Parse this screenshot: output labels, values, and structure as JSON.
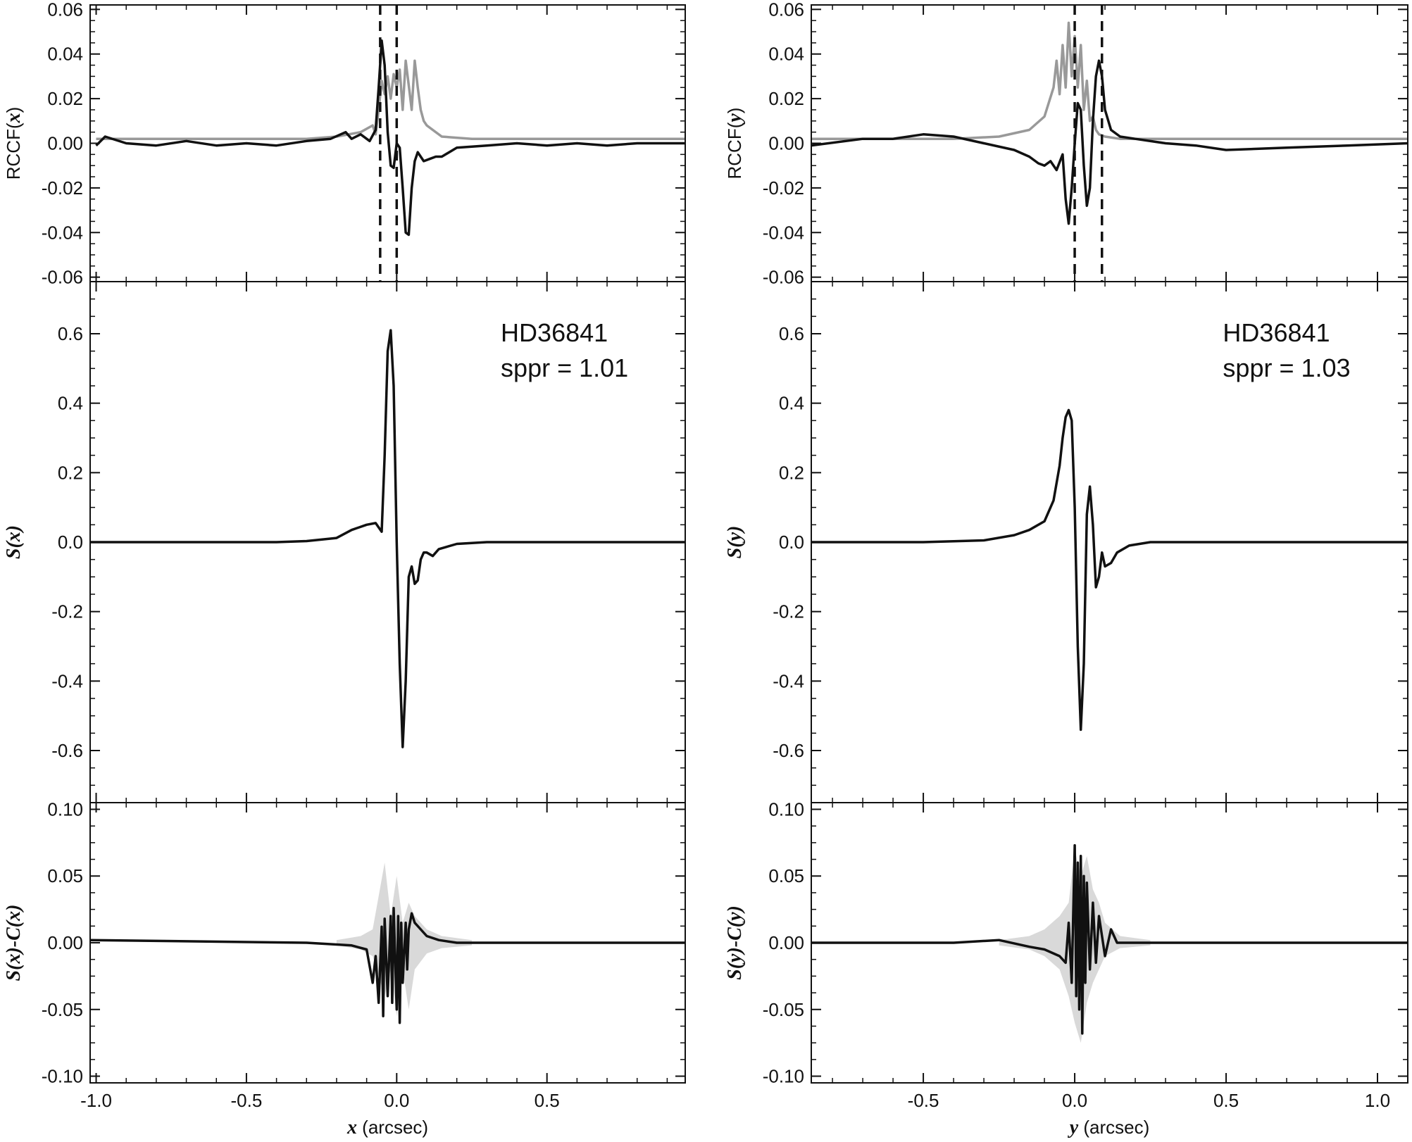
{
  "chart_data": [
    {
      "type": "line",
      "panel": "RCCF(x)",
      "ylabel_parts": [
        "RCCF(",
        "x",
        ")"
      ],
      "xlim": [
        -1.02,
        0.96
      ],
      "ylim": [
        -0.062,
        0.062
      ],
      "yticks": [
        "0.06",
        "0.04",
        "0.02",
        "0.00",
        "-0.02",
        "-0.04",
        "-0.06"
      ],
      "vlines": [
        -0.055,
        0.0
      ],
      "series": [
        {
          "color": "#999999",
          "x": [
            -1.0,
            -0.3,
            -0.2,
            -0.12,
            -0.08,
            -0.07,
            -0.06,
            -0.05,
            -0.04,
            -0.03,
            -0.02,
            -0.01,
            0.0,
            0.01,
            0.02,
            0.03,
            0.04,
            0.05,
            0.06,
            0.07,
            0.08,
            0.09,
            0.1,
            0.12,
            0.15,
            0.25,
            0.96
          ],
          "y": [
            0.002,
            0.002,
            0.003,
            0.005,
            0.008,
            0.004,
            0.015,
            0.028,
            0.022,
            0.03,
            0.02,
            0.031,
            0.025,
            0.033,
            0.015,
            0.037,
            0.026,
            0.015,
            0.037,
            0.025,
            0.015,
            0.01,
            0.008,
            0.006,
            0.003,
            0.002,
            0.002
          ]
        },
        {
          "color": "#111111",
          "x": [
            -1.0,
            -0.97,
            -0.9,
            -0.8,
            -0.7,
            -0.6,
            -0.5,
            -0.4,
            -0.3,
            -0.22,
            -0.17,
            -0.15,
            -0.12,
            -0.09,
            -0.07,
            -0.06,
            -0.05,
            -0.04,
            -0.03,
            -0.02,
            -0.01,
            0.0,
            0.01,
            0.02,
            0.03,
            0.04,
            0.05,
            0.06,
            0.07,
            0.08,
            0.09,
            0.11,
            0.13,
            0.15,
            0.2,
            0.3,
            0.4,
            0.5,
            0.6,
            0.7,
            0.8,
            0.96
          ],
          "y": [
            -0.001,
            0.003,
            0.0,
            -0.001,
            0.001,
            -0.001,
            0.0,
            -0.001,
            0.001,
            0.002,
            0.005,
            0.002,
            0.004,
            0.001,
            0.006,
            0.025,
            0.046,
            0.035,
            0.005,
            -0.01,
            -0.011,
            0.0,
            -0.002,
            -0.02,
            -0.04,
            -0.041,
            -0.02,
            -0.008,
            -0.004,
            -0.006,
            -0.008,
            -0.007,
            -0.006,
            -0.006,
            -0.002,
            -0.001,
            0.0,
            -0.001,
            0.0,
            -0.001,
            0.0,
            0.0
          ]
        }
      ]
    },
    {
      "type": "line",
      "panel": "S(x)",
      "ylabel": "S(x)",
      "xlim": [
        -1.02,
        0.96
      ],
      "ylim": [
        -0.75,
        0.75
      ],
      "yticks": [
        "0.6",
        "0.4",
        "0.2",
        "0.0",
        "-0.2",
        "-0.4",
        "-0.6"
      ],
      "annotation": [
        "HD36841",
        "sppr = 1.01"
      ],
      "series": [
        {
          "color": "#111111",
          "x": [
            -1.02,
            -0.6,
            -0.4,
            -0.3,
            -0.2,
            -0.15,
            -0.1,
            -0.07,
            -0.05,
            -0.04,
            -0.03,
            -0.02,
            -0.01,
            0.0,
            0.01,
            0.02,
            0.03,
            0.04,
            0.05,
            0.06,
            0.07,
            0.08,
            0.09,
            0.1,
            0.12,
            0.14,
            0.2,
            0.3,
            0.5,
            0.96
          ],
          "y": [
            0.0,
            0.0,
            0.0,
            0.003,
            0.012,
            0.035,
            0.05,
            0.055,
            0.03,
            0.25,
            0.55,
            0.61,
            0.45,
            0.0,
            -0.35,
            -0.59,
            -0.4,
            -0.1,
            -0.07,
            -0.12,
            -0.11,
            -0.05,
            -0.03,
            -0.03,
            -0.04,
            -0.02,
            -0.005,
            0.0,
            0.0,
            0.0
          ]
        }
      ]
    },
    {
      "type": "area",
      "panel": "S(x)-C(x)",
      "ylabel": "S(x)-C(x)",
      "xlabel_parts": [
        "x",
        " (arcsec)"
      ],
      "xlim": [
        -1.02,
        0.96
      ],
      "ylim": [
        -0.105,
        0.105
      ],
      "yticks": [
        "0.10",
        "0.05",
        "0.00",
        "-0.05",
        "-0.10"
      ],
      "xticks": [
        "-1.0",
        "-0.5",
        "0.0",
        "0.5"
      ],
      "band": {
        "color": "#d9d9d9",
        "x": [
          -0.2,
          -0.12,
          -0.08,
          -0.04,
          -0.02,
          0.0,
          0.02,
          0.04,
          0.06,
          0.1,
          0.15,
          0.25
        ],
        "upper": [
          0.002,
          0.005,
          0.01,
          0.06,
          0.02,
          0.05,
          0.015,
          0.03,
          0.02,
          0.01,
          0.005,
          0.002
        ],
        "lower": [
          -0.002,
          -0.005,
          -0.01,
          -0.04,
          -0.02,
          -0.055,
          -0.02,
          -0.05,
          -0.02,
          -0.008,
          -0.004,
          -0.002
        ]
      },
      "series": [
        {
          "color": "#111111",
          "x": [
            -1.02,
            -0.3,
            -0.15,
            -0.1,
            -0.08,
            -0.07,
            -0.06,
            -0.05,
            -0.045,
            -0.04,
            -0.03,
            -0.02,
            -0.015,
            -0.01,
            0.0,
            0.005,
            0.01,
            0.015,
            0.02,
            0.03,
            0.035,
            0.04,
            0.05,
            0.06,
            0.08,
            0.1,
            0.14,
            0.2,
            0.96
          ],
          "y": [
            0.002,
            0.0,
            -0.002,
            -0.005,
            -0.03,
            -0.01,
            -0.045,
            0.012,
            -0.055,
            0.018,
            -0.04,
            0.02,
            -0.045,
            0.026,
            -0.05,
            0.02,
            -0.06,
            0.015,
            -0.03,
            0.015,
            -0.02,
            0.01,
            0.022,
            0.015,
            0.01,
            0.005,
            0.002,
            0.0,
            0.0
          ]
        }
      ]
    },
    {
      "type": "line",
      "panel": "RCCF(y)",
      "ylabel_parts": [
        "RCCF(",
        "y",
        ")"
      ],
      "xlim": [
        -0.87,
        1.1
      ],
      "ylim": [
        -0.062,
        0.062
      ],
      "yticks": [
        "0.06",
        "0.04",
        "0.02",
        "0.00",
        "-0.02",
        "-0.04",
        "-0.06"
      ],
      "vlines": [
        0.0,
        0.09
      ],
      "series": [
        {
          "color": "#999999",
          "x": [
            -0.87,
            -0.4,
            -0.25,
            -0.15,
            -0.1,
            -0.07,
            -0.06,
            -0.05,
            -0.04,
            -0.03,
            -0.02,
            -0.01,
            0.0,
            0.01,
            0.02,
            0.03,
            0.04,
            0.05,
            0.06,
            0.07,
            0.08,
            0.1,
            0.15,
            0.25,
            1.1
          ],
          "y": [
            0.002,
            0.002,
            0.003,
            0.006,
            0.012,
            0.025,
            0.037,
            0.022,
            0.044,
            0.025,
            0.054,
            0.03,
            0.048,
            0.025,
            0.044,
            0.015,
            0.028,
            0.01,
            0.012,
            0.006,
            0.004,
            0.003,
            0.002,
            0.002,
            0.002
          ]
        },
        {
          "color": "#111111",
          "x": [
            -0.87,
            -0.7,
            -0.6,
            -0.5,
            -0.4,
            -0.3,
            -0.2,
            -0.15,
            -0.12,
            -0.1,
            -0.08,
            -0.06,
            -0.04,
            -0.03,
            -0.02,
            -0.01,
            0.0,
            0.01,
            0.02,
            0.03,
            0.04,
            0.05,
            0.06,
            0.07,
            0.08,
            0.09,
            0.1,
            0.12,
            0.15,
            0.2,
            0.3,
            0.4,
            0.5,
            0.7,
            0.9,
            1.1
          ],
          "y": [
            -0.001,
            0.002,
            0.002,
            0.004,
            0.003,
            0.0,
            -0.003,
            -0.006,
            -0.009,
            -0.01,
            -0.008,
            -0.012,
            -0.005,
            -0.025,
            -0.036,
            -0.02,
            0.0,
            0.018,
            0.015,
            -0.01,
            -0.028,
            -0.02,
            0.01,
            0.03,
            0.037,
            0.03,
            0.015,
            0.006,
            0.003,
            0.002,
            0.0,
            -0.001,
            -0.003,
            -0.002,
            -0.001,
            0.0
          ]
        }
      ]
    },
    {
      "type": "line",
      "panel": "S(y)",
      "ylabel": "S(y)",
      "xlim": [
        -0.87,
        1.1
      ],
      "ylim": [
        -0.75,
        0.75
      ],
      "yticks": [
        "0.6",
        "0.4",
        "0.2",
        "0.0",
        "-0.2",
        "-0.4",
        "-0.6"
      ],
      "annotation": [
        "HD36841",
        "sppr = 1.03"
      ],
      "series": [
        {
          "color": "#111111",
          "x": [
            -0.87,
            -0.5,
            -0.3,
            -0.2,
            -0.15,
            -0.1,
            -0.07,
            -0.05,
            -0.04,
            -0.03,
            -0.02,
            -0.01,
            0.0,
            0.01,
            0.02,
            0.03,
            0.04,
            0.05,
            0.06,
            0.07,
            0.08,
            0.09,
            0.1,
            0.12,
            0.14,
            0.18,
            0.25,
            0.4,
            1.1
          ],
          "y": [
            0.0,
            0.0,
            0.005,
            0.02,
            0.035,
            0.06,
            0.12,
            0.22,
            0.3,
            0.36,
            0.38,
            0.35,
            0.1,
            -0.3,
            -0.54,
            -0.35,
            0.08,
            0.16,
            0.05,
            -0.13,
            -0.1,
            -0.03,
            -0.07,
            -0.06,
            -0.03,
            -0.01,
            0.0,
            0.0,
            0.0
          ]
        }
      ]
    },
    {
      "type": "area",
      "panel": "S(y)-C(y)",
      "ylabel": "S(y)-C(y)",
      "xlabel_parts": [
        "y",
        " (arcsec)"
      ],
      "xlim": [
        -0.87,
        1.1
      ],
      "ylim": [
        -0.105,
        0.105
      ],
      "yticks": [
        "0.10",
        "0.05",
        "0.00",
        "-0.05",
        "-0.10"
      ],
      "xticks": [
        "-0.5",
        "0.0",
        "0.5",
        "1.0"
      ],
      "band": {
        "color": "#d9d9d9",
        "x": [
          -0.25,
          -0.15,
          -0.1,
          -0.05,
          -0.02,
          0.0,
          0.02,
          0.04,
          0.06,
          0.08,
          0.1,
          0.15,
          0.25
        ],
        "upper": [
          0.002,
          0.005,
          0.01,
          0.02,
          0.03,
          0.07,
          0.05,
          0.065,
          0.04,
          0.03,
          0.015,
          0.005,
          0.002
        ],
        "lower": [
          -0.002,
          -0.005,
          -0.01,
          -0.02,
          -0.04,
          -0.06,
          -0.075,
          -0.045,
          -0.03,
          -0.02,
          -0.01,
          -0.004,
          -0.002
        ]
      },
      "series": [
        {
          "color": "#111111",
          "x": [
            -0.87,
            -0.4,
            -0.25,
            -0.15,
            -0.1,
            -0.05,
            -0.03,
            -0.02,
            -0.01,
            0.0,
            0.005,
            0.01,
            0.015,
            0.02,
            0.025,
            0.03,
            0.035,
            0.04,
            0.05,
            0.06,
            0.07,
            0.08,
            0.1,
            0.12,
            0.14,
            0.2,
            1.1
          ],
          "y": [
            0.0,
            0.0,
            0.002,
            -0.003,
            -0.005,
            -0.01,
            -0.015,
            0.015,
            -0.03,
            0.073,
            -0.04,
            0.06,
            -0.05,
            0.065,
            -0.068,
            0.05,
            -0.03,
            0.045,
            -0.02,
            0.03,
            -0.015,
            0.02,
            -0.01,
            0.01,
            0.0,
            0.0,
            0.0
          ]
        }
      ]
    }
  ]
}
